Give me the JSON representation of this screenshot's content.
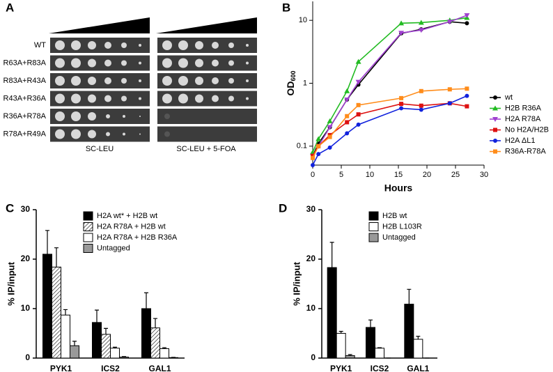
{
  "panel_a": {
    "label": "A",
    "strains": [
      "WT",
      "R63A+R83A",
      "R83A+R43A",
      "R43A+R36A",
      "R36A+R78A",
      "R78A+R49A"
    ],
    "conditions": [
      "SC-LEU",
      "SC-LEU + 5-FOA"
    ]
  },
  "chart_data": [
    {
      "type": "line",
      "panel": "B",
      "xlabel": "Hours",
      "ylabel": "OD",
      "ylabel_subscript": "600",
      "log_y": true,
      "x": [
        0,
        1,
        3,
        6,
        8,
        15.5,
        19,
        24,
        27
      ],
      "xlim": [
        0,
        30
      ],
      "xticks": [
        0,
        5,
        10,
        15,
        20,
        25,
        30
      ],
      "ylim": [
        0.05,
        20
      ],
      "yticks": [
        0.1,
        1,
        10
      ],
      "legend": "right",
      "series": [
        {
          "name": "wt",
          "color": "#000000",
          "marker": "circle",
          "values": [
            0.07,
            0.11,
            0.2,
            0.55,
            0.95,
            6.2,
            7.2,
            9.5,
            9.0
          ]
        },
        {
          "name": "H2B R36A",
          "color": "#22bb22",
          "marker": "triangle",
          "values": [
            0.08,
            0.13,
            0.25,
            0.75,
            2.2,
            9.0,
            9.2,
            10,
            11
          ]
        },
        {
          "name": "H2A R78A",
          "color": "#a040d0",
          "marker": "triangle-down",
          "values": [
            0.07,
            0.1,
            0.2,
            0.55,
            1.05,
            6.3,
            7.0,
            9.5,
            12
          ]
        },
        {
          "name": "No H2A/H2B",
          "color": "#dd1111",
          "marker": "square",
          "values": [
            0.07,
            0.1,
            0.15,
            0.24,
            0.32,
            0.47,
            0.44,
            0.48,
            0.43
          ]
        },
        {
          "name": "H2A ΔL1",
          "color": "#1122dd",
          "marker": "circle",
          "values": [
            0.05,
            0.075,
            0.095,
            0.16,
            0.22,
            0.4,
            0.38,
            0.48,
            0.63
          ]
        },
        {
          "name": "R36A-R78A",
          "color": "#ff8c1a",
          "marker": "square",
          "values": [
            0.065,
            0.1,
            0.14,
            0.3,
            0.45,
            0.58,
            0.75,
            0.8,
            0.82
          ]
        }
      ]
    },
    {
      "type": "bar",
      "panel": "C",
      "ylabel": "% IP/input",
      "categories": [
        "PYK1",
        "ICS2",
        "GAL1"
      ],
      "ylim": [
        0,
        30
      ],
      "yticks": [
        0,
        10,
        20,
        30
      ],
      "legend": "top",
      "series": [
        {
          "name": "H2A wt* + H2B wt",
          "color": "#000000",
          "values": [
            21,
            7.2,
            10.0
          ],
          "errors": [
            4.8,
            2.5,
            3.2
          ]
        },
        {
          "name": "H2A R78A + H2B wt",
          "color": "#ffffff",
          "pattern": "hatch",
          "values": [
            18.4,
            4.8,
            6.1
          ],
          "errors": [
            3.9,
            1.2,
            1.9
          ]
        },
        {
          "name": "H2A R78A + H2B R36A",
          "color": "#ffffff",
          "values": [
            8.7,
            2.0,
            1.9
          ],
          "errors": [
            1.1,
            0.2,
            0.2
          ]
        },
        {
          "name": "Untagged",
          "color": "#999999",
          "values": [
            2.5,
            0.2,
            0.1
          ],
          "errors": [
            0.9,
            0.1,
            0.05
          ]
        }
      ]
    },
    {
      "type": "bar",
      "panel": "D",
      "ylabel": "% IP/input",
      "categories": [
        "PYK1",
        "ICS2",
        "GAL1"
      ],
      "ylim": [
        0,
        30
      ],
      "yticks": [
        0,
        10,
        20,
        30
      ],
      "legend": "top",
      "series": [
        {
          "name": "H2B wt",
          "color": "#000000",
          "values": [
            18.3,
            6.2,
            10.9
          ],
          "errors": [
            5.1,
            1.5,
            3.0
          ]
        },
        {
          "name": "H2B L103R",
          "color": "#ffffff",
          "values": [
            5.0,
            2.0,
            3.8
          ],
          "errors": [
            0.4,
            0.1,
            0.6
          ]
        },
        {
          "name": "Untagged",
          "color": "#999999",
          "values": [
            0.5,
            0,
            0
          ],
          "errors": [
            0.2,
            0,
            0
          ]
        }
      ]
    }
  ]
}
